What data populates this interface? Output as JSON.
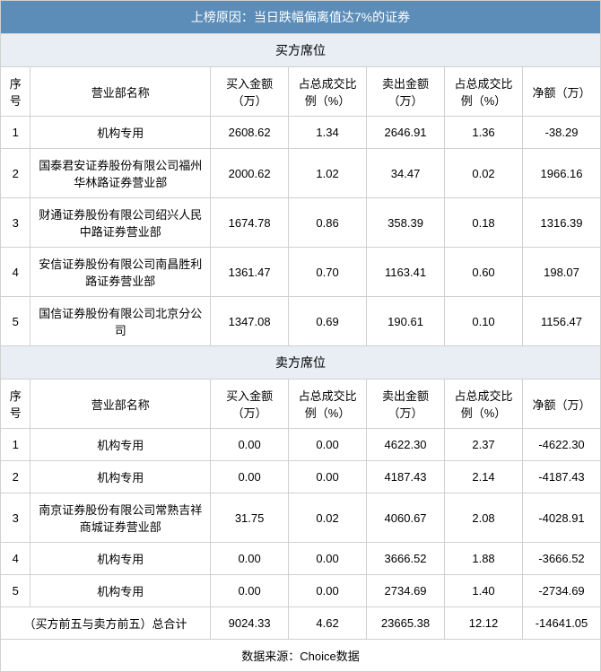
{
  "title": "上榜原因：当日跌幅偏离值达7%的证券",
  "buySection": "买方席位",
  "sellSection": "卖方席位",
  "headers": {
    "seq": "序号",
    "name": "营业部名称",
    "buyAmount": "买入金额（万）",
    "buyRatio": "占总成交比例（%）",
    "sellAmount": "卖出金额（万）",
    "sellRatio": "占总成交比例（%）",
    "net": "净额（万）"
  },
  "buyRows": [
    {
      "seq": "1",
      "name": "机构专用",
      "buyAmount": "2608.62",
      "buyRatio": "1.34",
      "sellAmount": "2646.91",
      "sellRatio": "1.36",
      "net": "-38.29"
    },
    {
      "seq": "2",
      "name": "国泰君安证券股份有限公司福州华林路证券营业部",
      "buyAmount": "2000.62",
      "buyRatio": "1.02",
      "sellAmount": "34.47",
      "sellRatio": "0.02",
      "net": "1966.16"
    },
    {
      "seq": "3",
      "name": "财通证券股份有限公司绍兴人民中路证券营业部",
      "buyAmount": "1674.78",
      "buyRatio": "0.86",
      "sellAmount": "358.39",
      "sellRatio": "0.18",
      "net": "1316.39"
    },
    {
      "seq": "4",
      "name": "安信证券股份有限公司南昌胜利路证券营业部",
      "buyAmount": "1361.47",
      "buyRatio": "0.70",
      "sellAmount": "1163.41",
      "sellRatio": "0.60",
      "net": "198.07"
    },
    {
      "seq": "5",
      "name": "国信证券股份有限公司北京分公司",
      "buyAmount": "1347.08",
      "buyRatio": "0.69",
      "sellAmount": "190.61",
      "sellRatio": "0.10",
      "net": "1156.47"
    }
  ],
  "sellRows": [
    {
      "seq": "1",
      "name": "机构专用",
      "buyAmount": "0.00",
      "buyRatio": "0.00",
      "sellAmount": "4622.30",
      "sellRatio": "2.37",
      "net": "-4622.30"
    },
    {
      "seq": "2",
      "name": "机构专用",
      "buyAmount": "0.00",
      "buyRatio": "0.00",
      "sellAmount": "4187.43",
      "sellRatio": "2.14",
      "net": "-4187.43"
    },
    {
      "seq": "3",
      "name": "南京证券股份有限公司常熟吉祥商城证券营业部",
      "buyAmount": "31.75",
      "buyRatio": "0.02",
      "sellAmount": "4060.67",
      "sellRatio": "2.08",
      "net": "-4028.91"
    },
    {
      "seq": "4",
      "name": "机构专用",
      "buyAmount": "0.00",
      "buyRatio": "0.00",
      "sellAmount": "3666.52",
      "sellRatio": "1.88",
      "net": "-3666.52"
    },
    {
      "seq": "5",
      "name": "机构专用",
      "buyAmount": "0.00",
      "buyRatio": "0.00",
      "sellAmount": "2734.69",
      "sellRatio": "1.40",
      "net": "-2734.69"
    }
  ],
  "total": {
    "label": "（买方前五与卖方前五）总合计",
    "buyAmount": "9024.33",
    "buyRatio": "4.62",
    "sellAmount": "23665.38",
    "sellRatio": "12.12",
    "net": "-14641.05"
  },
  "source": "数据来源：Choice数据"
}
